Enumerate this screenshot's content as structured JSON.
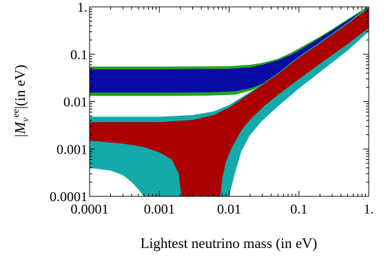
{
  "chart_data": {
    "type": "area",
    "xscale": "log",
    "yscale": "log",
    "xlim": [
      0.0001,
      1
    ],
    "ylim": [
      0.0001,
      1
    ],
    "xlabel": "Lightest neutrino mass (in eV)",
    "ylabel": "|M_ν^ee| (in eV)",
    "ylabel_parts": {
      "pre": "|M",
      "sub": "ν",
      "sup": "ee",
      "post": "|(in eV)"
    },
    "x_ticks": [
      {
        "value": 0.0001,
        "label": "0.0001"
      },
      {
        "value": 0.001,
        "label": "0.001"
      },
      {
        "value": 0.01,
        "label": "0.01"
      },
      {
        "value": 0.1,
        "label": "0.1"
      },
      {
        "value": 1,
        "label": "1."
      }
    ],
    "y_ticks": [
      {
        "value": 0.0001,
        "label": "0.0001"
      },
      {
        "value": 0.001,
        "label": "0.001"
      },
      {
        "value": 0.01,
        "label": "0.01"
      },
      {
        "value": 0.1,
        "label": "0.1"
      },
      {
        "value": 1,
        "label": "1."
      }
    ],
    "grid": false,
    "legend": null,
    "series": [
      {
        "key": "inverted-outer",
        "color": "#1ea51e",
        "upper": [
          [
            0.0001,
            0.055
          ],
          [
            0.001,
            0.055
          ],
          [
            0.01,
            0.056
          ],
          [
            0.02,
            0.06
          ],
          [
            0.03,
            0.066
          ],
          [
            0.05,
            0.08
          ],
          [
            0.08,
            0.11
          ],
          [
            0.12,
            0.155
          ],
          [
            0.2,
            0.235
          ],
          [
            0.3,
            0.34
          ],
          [
            0.5,
            0.55
          ],
          [
            0.7,
            0.75
          ],
          [
            1.0,
            1.05
          ]
        ],
        "lower": [
          [
            0.0001,
            0.0132
          ],
          [
            0.001,
            0.0132
          ],
          [
            0.005,
            0.0134
          ],
          [
            0.012,
            0.014
          ],
          [
            0.02,
            0.017
          ],
          [
            0.03,
            0.022
          ],
          [
            0.05,
            0.032
          ],
          [
            0.08,
            0.05
          ],
          [
            0.12,
            0.08
          ],
          [
            0.2,
            0.12
          ],
          [
            0.3,
            0.17
          ],
          [
            0.5,
            0.27
          ],
          [
            0.7,
            0.37
          ],
          [
            1.0,
            0.52
          ]
        ]
      },
      {
        "key": "inverted-inner",
        "color": "#0a0aa5",
        "upper": [
          [
            0.0001,
            0.048
          ],
          [
            0.001,
            0.048
          ],
          [
            0.01,
            0.049
          ],
          [
            0.02,
            0.053
          ],
          [
            0.03,
            0.06
          ],
          [
            0.05,
            0.074
          ],
          [
            0.08,
            0.1
          ],
          [
            0.12,
            0.14
          ],
          [
            0.2,
            0.22
          ],
          [
            0.3,
            0.32
          ],
          [
            0.5,
            0.52
          ],
          [
            0.7,
            0.72
          ],
          [
            1.0,
            1.0
          ]
        ],
        "lower": [
          [
            0.0001,
            0.0155
          ],
          [
            0.001,
            0.0155
          ],
          [
            0.005,
            0.0157
          ],
          [
            0.012,
            0.0165
          ],
          [
            0.02,
            0.019
          ],
          [
            0.03,
            0.024
          ],
          [
            0.05,
            0.035
          ],
          [
            0.08,
            0.054
          ],
          [
            0.12,
            0.085
          ],
          [
            0.2,
            0.13
          ],
          [
            0.3,
            0.18
          ],
          [
            0.5,
            0.29
          ],
          [
            0.7,
            0.39
          ],
          [
            1.0,
            0.55
          ]
        ]
      },
      {
        "key": "normal-outer",
        "color": "#14aaaa",
        "upper": [
          [
            0.0001,
            0.0048
          ],
          [
            0.001,
            0.0048
          ],
          [
            0.003,
            0.0052
          ],
          [
            0.006,
            0.0062
          ],
          [
            0.01,
            0.0085
          ],
          [
            0.02,
            0.016
          ],
          [
            0.05,
            0.04
          ],
          [
            0.1,
            0.09
          ],
          [
            0.2,
            0.18
          ],
          [
            0.5,
            0.47
          ],
          [
            1.0,
            1.05
          ]
        ],
        "lower": [
          [
            0.0001,
            0.0009
          ],
          [
            0.0001,
            0.0004
          ],
          [
            0.0002,
            0.00035
          ],
          [
            0.0003,
            0.00028
          ],
          [
            0.0004,
            0.0002
          ],
          [
            0.0005,
            0.00014
          ],
          [
            0.0006,
            0.0001
          ],
          [
            0.01,
            0.0001
          ],
          [
            0.012,
            0.0003
          ],
          [
            0.015,
            0.0009
          ],
          [
            0.02,
            0.002
          ],
          [
            0.03,
            0.004
          ],
          [
            0.05,
            0.008
          ],
          [
            0.1,
            0.019
          ],
          [
            0.2,
            0.042
          ],
          [
            0.5,
            0.12
          ],
          [
            1.0,
            0.3
          ]
        ]
      },
      {
        "key": "normal-inner",
        "color": "#aa0000",
        "upper": [
          [
            0.0001,
            0.0037
          ],
          [
            0.001,
            0.0037
          ],
          [
            0.003,
            0.0041
          ],
          [
            0.006,
            0.0052
          ],
          [
            0.01,
            0.0075
          ],
          [
            0.02,
            0.015
          ],
          [
            0.05,
            0.038
          ],
          [
            0.1,
            0.085
          ],
          [
            0.2,
            0.17
          ],
          [
            0.5,
            0.44
          ],
          [
            1.0,
            0.95
          ]
        ],
        "lower": [
          [
            0.0001,
            0.0015
          ],
          [
            0.0003,
            0.0013
          ],
          [
            0.0006,
            0.0011
          ],
          [
            0.001,
            0.00085
          ],
          [
            0.0015,
            0.0006
          ],
          [
            0.0019,
            0.0003
          ],
          [
            0.002,
            0.00015
          ],
          [
            0.0021,
            0.0001
          ],
          [
            0.0075,
            0.0001
          ],
          [
            0.008,
            0.00025
          ],
          [
            0.009,
            0.00055
          ],
          [
            0.011,
            0.0011
          ],
          [
            0.015,
            0.0025
          ],
          [
            0.02,
            0.0042
          ],
          [
            0.03,
            0.0075
          ],
          [
            0.05,
            0.014
          ],
          [
            0.1,
            0.03
          ],
          [
            0.2,
            0.063
          ],
          [
            0.5,
            0.165
          ],
          [
            1.0,
            0.36
          ]
        ]
      }
    ]
  }
}
